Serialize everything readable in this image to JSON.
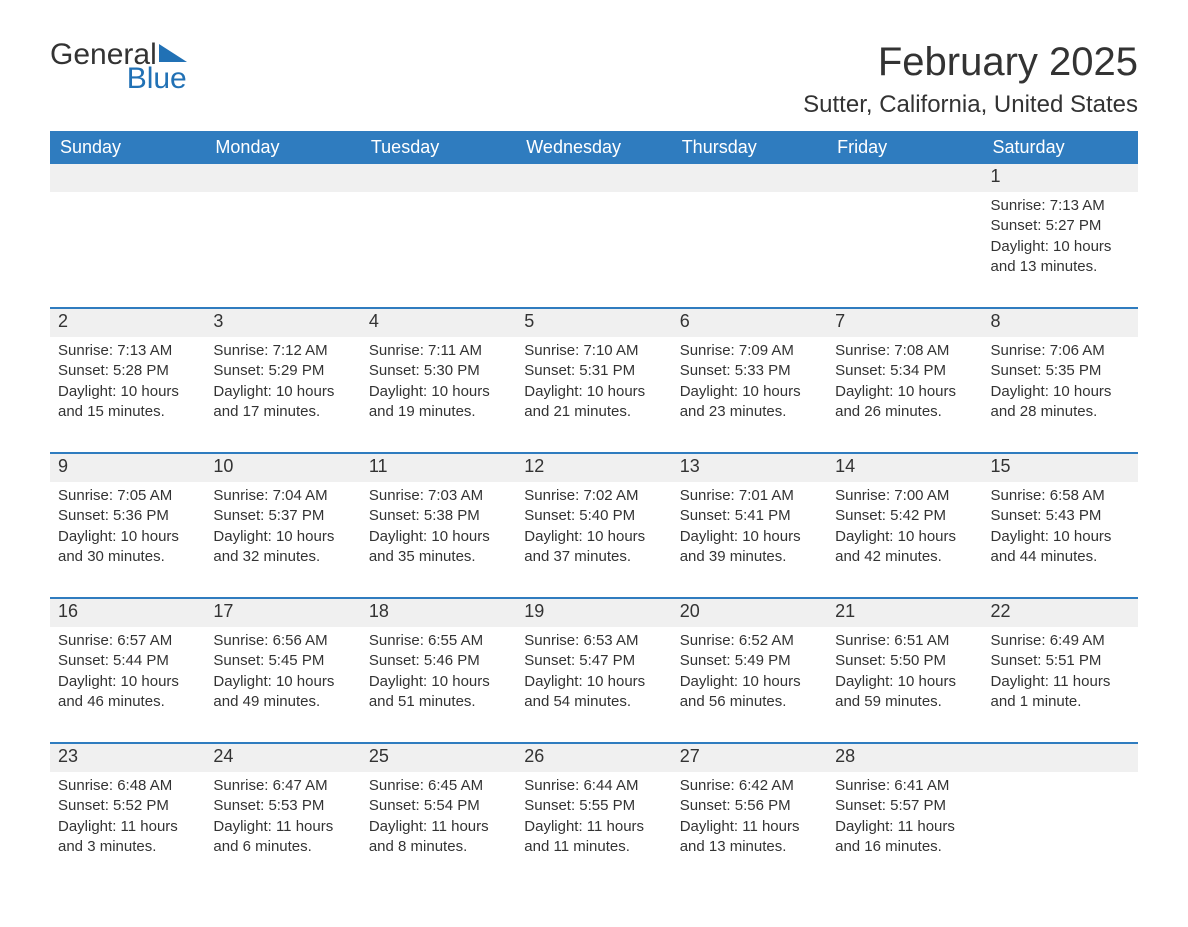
{
  "logo": {
    "general": "General",
    "blue": "Blue"
  },
  "title": "February 2025",
  "location": "Sutter, California, United States",
  "colors": {
    "accent": "#2f7cbf",
    "logo_blue": "#2171b5",
    "header_bg": "#2f7cbf",
    "header_text": "#ffffff",
    "daynum_bg": "#f0f0f0",
    "text": "#333333",
    "page_bg": "#ffffff"
  },
  "typography": {
    "title_fontsize": 40,
    "location_fontsize": 24,
    "header_fontsize": 18,
    "daynum_fontsize": 18,
    "body_fontsize": 15,
    "font_family": "Arial"
  },
  "day_headers": [
    "Sunday",
    "Monday",
    "Tuesday",
    "Wednesday",
    "Thursday",
    "Friday",
    "Saturday"
  ],
  "labels": {
    "sunrise": "Sunrise:",
    "sunset": "Sunset:",
    "daylight": "Daylight:"
  },
  "weeks": [
    [
      null,
      null,
      null,
      null,
      null,
      null,
      {
        "n": "1",
        "sunrise": "7:13 AM",
        "sunset": "5:27 PM",
        "daylight": "10 hours and 13 minutes."
      }
    ],
    [
      {
        "n": "2",
        "sunrise": "7:13 AM",
        "sunset": "5:28 PM",
        "daylight": "10 hours and 15 minutes."
      },
      {
        "n": "3",
        "sunrise": "7:12 AM",
        "sunset": "5:29 PM",
        "daylight": "10 hours and 17 minutes."
      },
      {
        "n": "4",
        "sunrise": "7:11 AM",
        "sunset": "5:30 PM",
        "daylight": "10 hours and 19 minutes."
      },
      {
        "n": "5",
        "sunrise": "7:10 AM",
        "sunset": "5:31 PM",
        "daylight": "10 hours and 21 minutes."
      },
      {
        "n": "6",
        "sunrise": "7:09 AM",
        "sunset": "5:33 PM",
        "daylight": "10 hours and 23 minutes."
      },
      {
        "n": "7",
        "sunrise": "7:08 AM",
        "sunset": "5:34 PM",
        "daylight": "10 hours and 26 minutes."
      },
      {
        "n": "8",
        "sunrise": "7:06 AM",
        "sunset": "5:35 PM",
        "daylight": "10 hours and 28 minutes."
      }
    ],
    [
      {
        "n": "9",
        "sunrise": "7:05 AM",
        "sunset": "5:36 PM",
        "daylight": "10 hours and 30 minutes."
      },
      {
        "n": "10",
        "sunrise": "7:04 AM",
        "sunset": "5:37 PM",
        "daylight": "10 hours and 32 minutes."
      },
      {
        "n": "11",
        "sunrise": "7:03 AM",
        "sunset": "5:38 PM",
        "daylight": "10 hours and 35 minutes."
      },
      {
        "n": "12",
        "sunrise": "7:02 AM",
        "sunset": "5:40 PM",
        "daylight": "10 hours and 37 minutes."
      },
      {
        "n": "13",
        "sunrise": "7:01 AM",
        "sunset": "5:41 PM",
        "daylight": "10 hours and 39 minutes."
      },
      {
        "n": "14",
        "sunrise": "7:00 AM",
        "sunset": "5:42 PM",
        "daylight": "10 hours and 42 minutes."
      },
      {
        "n": "15",
        "sunrise": "6:58 AM",
        "sunset": "5:43 PM",
        "daylight": "10 hours and 44 minutes."
      }
    ],
    [
      {
        "n": "16",
        "sunrise": "6:57 AM",
        "sunset": "5:44 PM",
        "daylight": "10 hours and 46 minutes."
      },
      {
        "n": "17",
        "sunrise": "6:56 AM",
        "sunset": "5:45 PM",
        "daylight": "10 hours and 49 minutes."
      },
      {
        "n": "18",
        "sunrise": "6:55 AM",
        "sunset": "5:46 PM",
        "daylight": "10 hours and 51 minutes."
      },
      {
        "n": "19",
        "sunrise": "6:53 AM",
        "sunset": "5:47 PM",
        "daylight": "10 hours and 54 minutes."
      },
      {
        "n": "20",
        "sunrise": "6:52 AM",
        "sunset": "5:49 PM",
        "daylight": "10 hours and 56 minutes."
      },
      {
        "n": "21",
        "sunrise": "6:51 AM",
        "sunset": "5:50 PM",
        "daylight": "10 hours and 59 minutes."
      },
      {
        "n": "22",
        "sunrise": "6:49 AM",
        "sunset": "5:51 PM",
        "daylight": "11 hours and 1 minute."
      }
    ],
    [
      {
        "n": "23",
        "sunrise": "6:48 AM",
        "sunset": "5:52 PM",
        "daylight": "11 hours and 3 minutes."
      },
      {
        "n": "24",
        "sunrise": "6:47 AM",
        "sunset": "5:53 PM",
        "daylight": "11 hours and 6 minutes."
      },
      {
        "n": "25",
        "sunrise": "6:45 AM",
        "sunset": "5:54 PM",
        "daylight": "11 hours and 8 minutes."
      },
      {
        "n": "26",
        "sunrise": "6:44 AM",
        "sunset": "5:55 PM",
        "daylight": "11 hours and 11 minutes."
      },
      {
        "n": "27",
        "sunrise": "6:42 AM",
        "sunset": "5:56 PM",
        "daylight": "11 hours and 13 minutes."
      },
      {
        "n": "28",
        "sunrise": "6:41 AM",
        "sunset": "5:57 PM",
        "daylight": "11 hours and 16 minutes."
      },
      null
    ]
  ]
}
